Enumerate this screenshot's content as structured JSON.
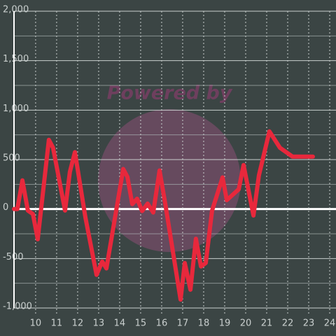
{
  "chart_data": {
    "type": "line",
    "watermark": "Powered by",
    "x": [
      8.97,
      9.13,
      9.37,
      9.63,
      9.87,
      10.1,
      10.63,
      10.83,
      11.4,
      11.63,
      11.87,
      12.37,
      12.9,
      13.17,
      13.37,
      14.17,
      14.37,
      14.6,
      14.83,
      15.07,
      15.33,
      15.6,
      15.9,
      16.17,
      16.9,
      17.1,
      17.37,
      17.63,
      17.87,
      18.1,
      18.4,
      18.9,
      19.1,
      19.67,
      19.9,
      20.37,
      20.63,
      21.13,
      21.63,
      22.23,
      23.2
    ],
    "series": [
      {
        "color": "#e8283c",
        "values": [
          0,
          0,
          290,
          -15,
          -50,
          -305,
          700,
          620,
          -15,
          375,
          575,
          -85,
          -665,
          -530,
          -600,
          405,
          325,
          50,
          105,
          -20,
          55,
          -35,
          390,
          55,
          -915,
          -545,
          -815,
          -300,
          -580,
          -545,
          -15,
          320,
          90,
          200,
          445,
          -65,
          340,
          785,
          620,
          530,
          530
        ]
      }
    ],
    "xlim": [
      8.97,
      24.3
    ],
    "ylim": [
      -1000,
      2000
    ],
    "xticks": [
      10,
      11,
      12,
      13,
      14,
      15,
      16,
      17,
      18,
      19,
      20,
      21,
      22,
      23,
      24
    ],
    "yticks": [
      {
        "value": -1000,
        "label": "-1,000"
      },
      -500,
      0,
      500,
      {
        "value": 1000,
        "label": "1,000"
      },
      {
        "value": 1500,
        "label": "1,500"
      },
      {
        "value": 2000,
        "label": "2,000"
      }
    ],
    "minor_yticks": [
      -750,
      -250,
      250,
      750,
      1250,
      1750
    ],
    "grid": true
  }
}
